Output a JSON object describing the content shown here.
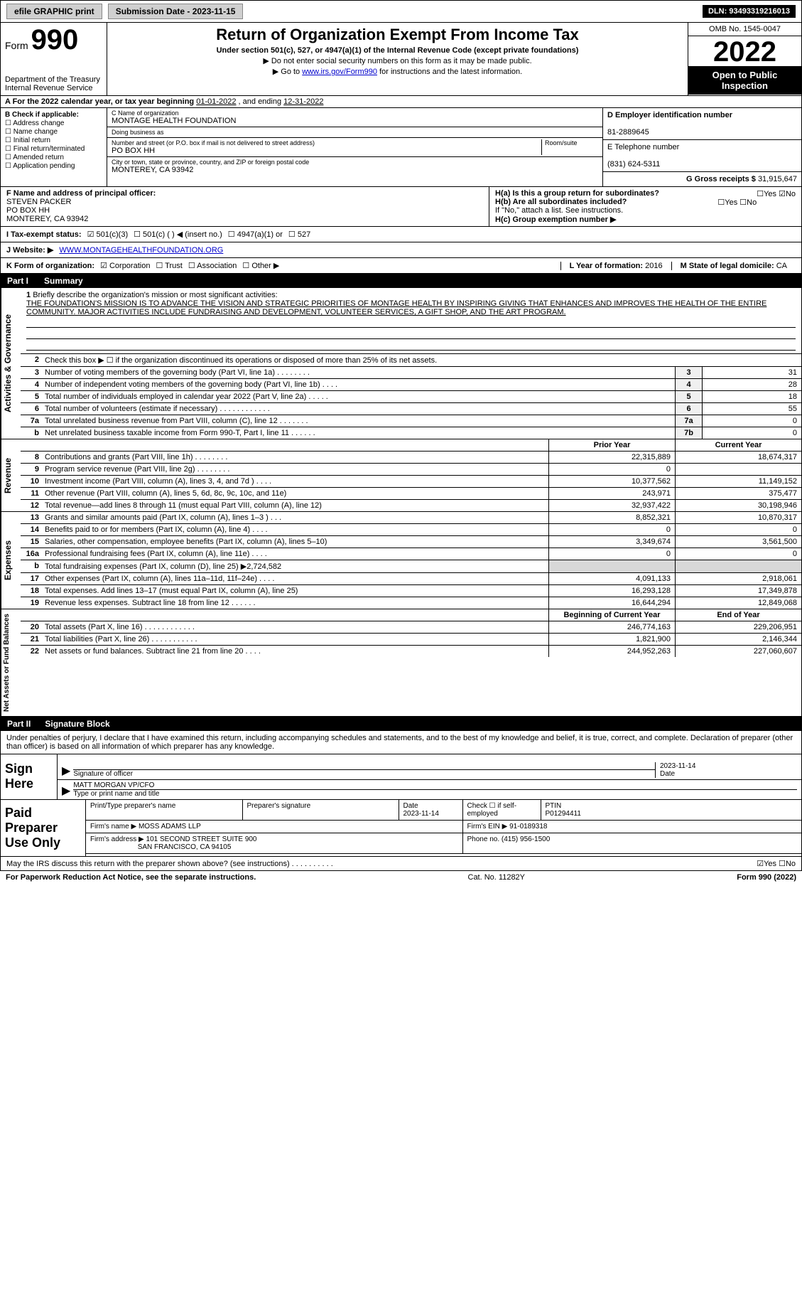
{
  "topbar": {
    "efile_label": "efile GRAPHIC print",
    "submission_label": "Submission Date - 2023-11-15",
    "dln_label": "DLN: 93493319216013"
  },
  "header": {
    "form_label": "Form",
    "form_number": "990",
    "dept": "Department of the Treasury",
    "irs": "Internal Revenue Service",
    "title": "Return of Organization Exempt From Income Tax",
    "subtitle": "Under section 501(c), 527, or 4947(a)(1) of the Internal Revenue Code (except private foundations)",
    "note1": "▶ Do not enter social security numbers on this form as it may be made public.",
    "note2_pre": "▶ Go to ",
    "note2_link": "www.irs.gov/Form990",
    "note2_post": " for instructions and the latest information.",
    "omb": "OMB No. 1545-0047",
    "year": "2022",
    "open": "Open to Public Inspection"
  },
  "row_a": {
    "text_pre": "A For the 2022 calendar year, or tax year beginning ",
    "begin": "01-01-2022",
    "mid": " , and ending ",
    "end": "12-31-2022"
  },
  "col_b": {
    "title": "B Check if applicable:",
    "items": [
      "Address change",
      "Name change",
      "Initial return",
      "Final return/terminated",
      "Amended return",
      "Application pending"
    ]
  },
  "col_c": {
    "name_label": "C Name of organization",
    "name": "MONTAGE HEALTH FOUNDATION",
    "dba_label": "Doing business as",
    "dba": "",
    "street_label": "Number and street (or P.O. box if mail is not delivered to street address)",
    "room_label": "Room/suite",
    "street": "PO BOX HH",
    "city_label": "City or town, state or province, country, and ZIP or foreign postal code",
    "city": "MONTEREY, CA  93942"
  },
  "col_d": {
    "ein_label": "D Employer identification number",
    "ein": "81-2889645",
    "phone_label": "E Telephone number",
    "phone": "(831) 624-5311",
    "gross_label": "G Gross receipts $",
    "gross": "31,915,647"
  },
  "principal": {
    "label": "F Name and address of principal officer:",
    "name": "STEVEN PACKER",
    "addr1": "PO BOX HH",
    "addr2": "MONTEREY, CA  93942",
    "ha_label": "H(a) Is this a group return for subordinates?",
    "ha_yes": "Yes",
    "ha_no": "No",
    "hb_label": "H(b) Are all subordinates included?",
    "hb_note": "If \"No,\" attach a list. See instructions.",
    "hc_label": "H(c) Group exemption number ▶"
  },
  "status": {
    "label": "I  Tax-exempt status:",
    "opt1": "501(c)(3)",
    "opt2": "501(c) (  ) ◀ (insert no.)",
    "opt3": "4947(a)(1) or",
    "opt4": "527"
  },
  "website": {
    "label": "J  Website: ▶",
    "url": "WWW.MONTAGEHEALTHFOUNDATION.ORG"
  },
  "form_org": {
    "label": "K Form of organization:",
    "opts": [
      "Corporation",
      "Trust",
      "Association",
      "Other ▶"
    ],
    "year_label": "L Year of formation:",
    "year": "2016",
    "state_label": "M State of legal domicile:",
    "state": "CA"
  },
  "part1": {
    "part": "Part I",
    "title": "Summary"
  },
  "mission": {
    "num": "1",
    "label": "Briefly describe the organization's mission or most significant activities:",
    "text": "THE FOUNDATION'S MISSION IS TO ADVANCE THE VISION AND STRATEGIC PRIORITIES OF MONTAGE HEALTH BY INSPIRING GIVING THAT ENHANCES AND IMPROVES THE HEALTH OF THE ENTIRE COMMUNITY. MAJOR ACTIVITIES INCLUDE FUNDRAISING AND DEVELOPMENT, VOLUNTEER SERVICES, A GIFT SHOP, AND THE ART PROGRAM."
  },
  "governance": {
    "side": "Activities & Governance",
    "lines": [
      {
        "num": "2",
        "desc": "Check this box ▶ ☐ if the organization discontinued its operations or disposed of more than 25% of its net assets.",
        "box": "",
        "val": ""
      },
      {
        "num": "3",
        "desc": "Number of voting members of the governing body (Part VI, line 1a)  .   .   .   .   .   .   .   .",
        "box": "3",
        "val": "31"
      },
      {
        "num": "4",
        "desc": "Number of independent voting members of the governing body (Part VI, line 1b)  .   .   .   .",
        "box": "4",
        "val": "28"
      },
      {
        "num": "5",
        "desc": "Total number of individuals employed in calendar year 2022 (Part V, line 2a)  .   .   .   .   .",
        "box": "5",
        "val": "18"
      },
      {
        "num": "6",
        "desc": "Total number of volunteers (estimate if necessary)  .   .   .   .   .   .   .   .   .   .   .   .",
        "box": "6",
        "val": "55"
      },
      {
        "num": "7a",
        "desc": "Total unrelated business revenue from Part VIII, column (C), line 12  .   .   .   .   .   .   .",
        "box": "7a",
        "val": "0"
      },
      {
        "num": "b",
        "desc": "Net unrelated business taxable income from Form 990-T, Part I, line 11  .   .   .   .   .   .",
        "box": "7b",
        "val": "0"
      }
    ]
  },
  "revenue": {
    "side": "Revenue",
    "header_prior": "Prior Year",
    "header_current": "Current Year",
    "lines": [
      {
        "num": "8",
        "desc": "Contributions and grants (Part VIII, line 1h)  .   .   .   .   .   .   .   .",
        "prior": "22,315,889",
        "curr": "18,674,317"
      },
      {
        "num": "9",
        "desc": "Program service revenue (Part VIII, line 2g)  .   .   .   .   .   .   .   .",
        "prior": "0",
        "curr": ""
      },
      {
        "num": "10",
        "desc": "Investment income (Part VIII, column (A), lines 3, 4, and 7d )  .   .   .   .",
        "prior": "10,377,562",
        "curr": "11,149,152"
      },
      {
        "num": "11",
        "desc": "Other revenue (Part VIII, column (A), lines 5, 6d, 8c, 9c, 10c, and 11e)",
        "prior": "243,971",
        "curr": "375,477"
      },
      {
        "num": "12",
        "desc": "Total revenue—add lines 8 through 11 (must equal Part VIII, column (A), line 12)",
        "prior": "32,937,422",
        "curr": "30,198,946"
      }
    ]
  },
  "expenses": {
    "side": "Expenses",
    "lines": [
      {
        "num": "13",
        "desc": "Grants and similar amounts paid (Part IX, column (A), lines 1–3 )  .   .   .",
        "prior": "8,852,321",
        "curr": "10,870,317"
      },
      {
        "num": "14",
        "desc": "Benefits paid to or for members (Part IX, column (A), line 4)  .   .   .   .",
        "prior": "0",
        "curr": "0"
      },
      {
        "num": "15",
        "desc": "Salaries, other compensation, employee benefits (Part IX, column (A), lines 5–10)",
        "prior": "3,349,674",
        "curr": "3,561,500"
      },
      {
        "num": "16a",
        "desc": "Professional fundraising fees (Part IX, column (A), line 11e)  .   .   .   .",
        "prior": "0",
        "curr": "0"
      },
      {
        "num": "b",
        "desc": "Total fundraising expenses (Part IX, column (D), line 25) ▶2,724,582",
        "prior": "",
        "curr": "",
        "shaded": true
      },
      {
        "num": "17",
        "desc": "Other expenses (Part IX, column (A), lines 11a–11d, 11f–24e)  .   .   .   .",
        "prior": "4,091,133",
        "curr": "2,918,061"
      },
      {
        "num": "18",
        "desc": "Total expenses. Add lines 13–17 (must equal Part IX, column (A), line 25)",
        "prior": "16,293,128",
        "curr": "17,349,878"
      },
      {
        "num": "19",
        "desc": "Revenue less expenses. Subtract line 18 from line 12  .   .   .   .   .   .",
        "prior": "16,644,294",
        "curr": "12,849,068"
      }
    ]
  },
  "netassets": {
    "side": "Net Assets or Fund Balances",
    "header_begin": "Beginning of Current Year",
    "header_end": "End of Year",
    "lines": [
      {
        "num": "20",
        "desc": "Total assets (Part X, line 16)  .   .   .   .   .   .   .   .   .   .   .   .",
        "prior": "246,774,163",
        "curr": "229,206,951"
      },
      {
        "num": "21",
        "desc": "Total liabilities (Part X, line 26)  .   .   .   .   .   .   .   .   .   .   .",
        "prior": "1,821,900",
        "curr": "2,146,344"
      },
      {
        "num": "22",
        "desc": "Net assets or fund balances. Subtract line 21 from line 20  .   .   .   .",
        "prior": "244,952,263",
        "curr": "227,060,607"
      }
    ]
  },
  "part2": {
    "part": "Part II",
    "title": "Signature Block"
  },
  "sig_intro": "Under penalties of perjury, I declare that I have examined this return, including accompanying schedules and statements, and to the best of my knowledge and belief, it is true, correct, and complete. Declaration of preparer (other than officer) is based on all information of which preparer has any knowledge.",
  "sign": {
    "label": "Sign Here",
    "sig_label": "Signature of officer",
    "date_label": "Date",
    "date": "2023-11-14",
    "name": "MATT MORGAN VP/CFO",
    "name_label": "Type or print name and title"
  },
  "preparer": {
    "label": "Paid Preparer Use Only",
    "name_label": "Print/Type preparer's name",
    "sig_label": "Preparer's signature",
    "date_label": "Date",
    "date": "2023-11-14",
    "check_label": "Check ☐ if self-employed",
    "ptin_label": "PTIN",
    "ptin": "P01294411",
    "firm_name_label": "Firm's name    ▶",
    "firm_name": "MOSS ADAMS LLP",
    "firm_ein_label": "Firm's EIN ▶",
    "firm_ein": "91-0189318",
    "firm_addr_label": "Firm's address ▶",
    "firm_addr": "101 SECOND STREET SUITE 900",
    "firm_city": "SAN FRANCISCO, CA  94105",
    "phone_label": "Phone no.",
    "phone": "(415) 956-1500"
  },
  "discuss": {
    "text": "May the IRS discuss this return with the preparer shown above? (see instructions)  .   .   .   .   .   .   .   .   .   .",
    "yes": "Yes",
    "no": "No"
  },
  "footer": {
    "left": "For Paperwork Reduction Act Notice, see the separate instructions.",
    "mid": "Cat. No. 11282Y",
    "right": "Form 990 (2022)"
  }
}
